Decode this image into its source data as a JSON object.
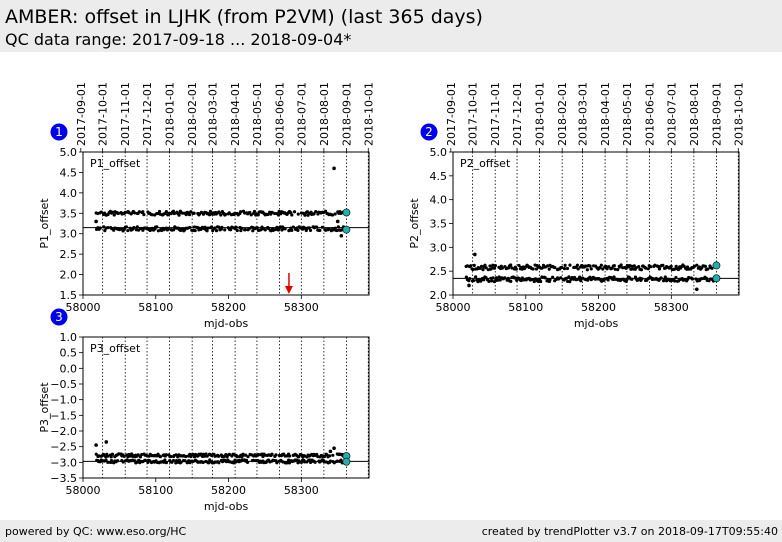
{
  "header": {
    "title": "AMBER: offset in LJHK (from P2VM) (last 365 days)",
    "subtitle": "QC data range: 2017-09-18 ... 2018-09-04*"
  },
  "footer": {
    "left": "powered by QC: www.eso.org/HC",
    "right": "created by trendPlotter v3.7 on 2018-09-17T09:55:40"
  },
  "colors": {
    "points": "#000000",
    "latest": "#20b2aa",
    "outlier_arrow": "#e00000",
    "badge": "#0000ee",
    "header_bg": "#ececec"
  },
  "chart_data": [
    {
      "type": "scatter",
      "badge": "1",
      "panel_label": "P1_offset",
      "xlabel": "mjd-obs",
      "ylabel": "P1_offset",
      "xlim": [
        58000,
        58393
      ],
      "ylim": [
        1.5,
        5.0
      ],
      "xticks": [
        58000,
        58100,
        58200,
        58300
      ],
      "yticks": [
        1.5,
        2.0,
        2.5,
        3.0,
        3.5,
        4.0,
        4.5,
        5.0
      ],
      "ytick_labels": [
        "1.5",
        "2.0",
        "2.5",
        "3.0",
        "3.5",
        "4.0",
        "4.5",
        "5.0"
      ],
      "date_axis": {
        "dates": [
          "2017-09-01",
          "2017-10-01",
          "2017-11-01",
          "2017-12-01",
          "2018-01-01",
          "2018-02-01",
          "2018-03-01",
          "2018-04-01",
          "2018-05-01",
          "2018-06-01",
          "2018-07-01",
          "2018-08-01",
          "2018-09-01",
          "2018-10-01"
        ],
        "mjd": [
          57997,
          58027,
          58058,
          58088,
          58119,
          58150,
          58178,
          58209,
          58239,
          58270,
          58300,
          58331,
          58362,
          58392
        ]
      },
      "reference_line": 3.15,
      "series": [
        {
          "level": 3.5,
          "spread": 0.05
        },
        {
          "level": 3.12,
          "spread": 0.05
        }
      ],
      "x_range": [
        58018,
        58358
      ],
      "extra_points": [
        {
          "x": 58345,
          "y": 4.6
        },
        {
          "x": 58350,
          "y": 3.3
        },
        {
          "x": 58355,
          "y": 2.95
        },
        {
          "x": 58018,
          "y": 3.3
        }
      ],
      "latest_points": [
        {
          "x": 58362,
          "y": 3.52
        },
        {
          "x": 58362,
          "y": 3.1
        }
      ],
      "outlier_arrows": [
        {
          "x": 58283
        }
      ]
    },
    {
      "type": "scatter",
      "badge": "2",
      "panel_label": "P2_offset",
      "xlabel": "mjd-obs",
      "ylabel": "P2_offset",
      "xlim": [
        58000,
        58393
      ],
      "ylim": [
        2.0,
        5.0
      ],
      "xticks": [
        58000,
        58100,
        58200,
        58300
      ],
      "yticks": [
        2.0,
        2.5,
        3.0,
        3.5,
        4.0,
        4.5,
        5.0
      ],
      "ytick_labels": [
        "2.0",
        "2.5",
        "3.0",
        "3.5",
        "4.0",
        "4.5",
        "5.0"
      ],
      "date_axis": {
        "dates": [
          "2017-09-01",
          "2017-10-01",
          "2017-11-01",
          "2017-12-01",
          "2018-01-01",
          "2018-02-01",
          "2018-03-01",
          "2018-04-01",
          "2018-05-01",
          "2018-06-01",
          "2018-07-01",
          "2018-08-01",
          "2018-09-01",
          "2018-10-01"
        ],
        "mjd": [
          57997,
          58027,
          58058,
          58088,
          58119,
          58150,
          58178,
          58209,
          58239,
          58270,
          58300,
          58331,
          58362,
          58392
        ]
      },
      "reference_line": 2.35,
      "series": [
        {
          "level": 2.58,
          "spread": 0.05
        },
        {
          "level": 2.33,
          "spread": 0.05
        }
      ],
      "x_range": [
        58018,
        58358
      ],
      "extra_points": [
        {
          "x": 58030,
          "y": 2.85
        },
        {
          "x": 58022,
          "y": 2.2
        },
        {
          "x": 58335,
          "y": 2.12
        }
      ],
      "latest_points": [
        {
          "x": 58362,
          "y": 2.62
        },
        {
          "x": 58362,
          "y": 2.35
        }
      ],
      "outlier_arrows": []
    },
    {
      "type": "scatter",
      "badge": "3",
      "panel_label": "P3_offset",
      "xlabel": "mjd-obs",
      "ylabel": "P3_offset",
      "xlim": [
        58000,
        58393
      ],
      "ylim": [
        -3.5,
        1.0
      ],
      "xticks": [
        58000,
        58100,
        58200,
        58300
      ],
      "yticks": [
        -3.5,
        -3.0,
        -2.5,
        -2.0,
        -1.5,
        -1.0,
        -0.5,
        0.0,
        0.5,
        1.0
      ],
      "ytick_labels": [
        "−3.5",
        "−3.0",
        "−2.5",
        "−2.0",
        "−1.5",
        "−1.0",
        "−0.5",
        "0.0",
        "0.5",
        "1.0"
      ],
      "date_axis": {
        "mjd": [
          57997,
          58027,
          58058,
          58088,
          58119,
          58150,
          58178,
          58209,
          58239,
          58270,
          58300,
          58331,
          58362,
          58392
        ]
      },
      "reference_line": -2.97,
      "series": [
        {
          "level": -2.78,
          "spread": 0.05
        },
        {
          "level": -2.97,
          "spread": 0.05
        }
      ],
      "x_range": [
        58018,
        58358
      ],
      "extra_points": [
        {
          "x": 58018,
          "y": -2.45
        },
        {
          "x": 58032,
          "y": -2.35
        },
        {
          "x": 58345,
          "y": -2.55
        },
        {
          "x": 58340,
          "y": -2.65
        }
      ],
      "latest_points": [
        {
          "x": 58362,
          "y": -2.8
        },
        {
          "x": 58362,
          "y": -2.98
        }
      ],
      "outlier_arrows": []
    }
  ]
}
